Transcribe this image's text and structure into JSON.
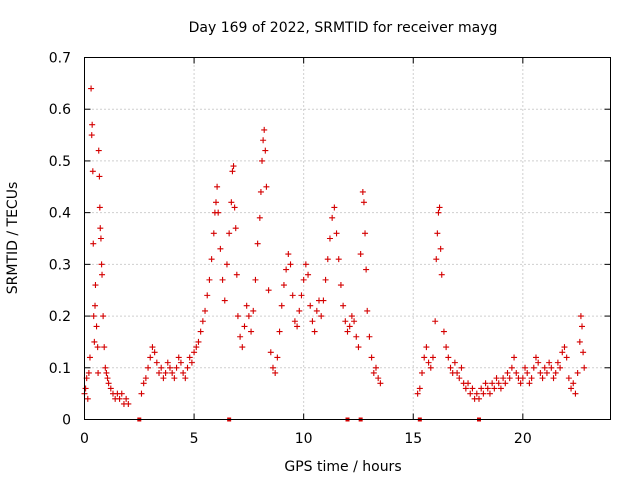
{
  "chart_data": {
    "type": "scatter",
    "title": "Day 169 of 2022, SRMTID for receiver mayg",
    "xlabel": "GPS time / hours",
    "ylabel": "SRMTID / TECUs",
    "xlim": [
      0,
      24
    ],
    "ylim": [
      0,
      0.7
    ],
    "xticks": [
      0,
      5,
      10,
      15,
      20
    ],
    "yticks": [
      0,
      0.1,
      0.2,
      0.3,
      0.4,
      0.5,
      0.6,
      0.7
    ],
    "xtick_labels": [
      "0",
      "5",
      "10",
      "15",
      "20"
    ],
    "ytick_labels": [
      "0",
      "0.1",
      "0.2",
      "0.3",
      "0.4",
      "0.5",
      "0.6",
      "0.7"
    ],
    "grid": true,
    "marker": "+",
    "color": "#d40000",
    "gap_markers_x": [
      2.5,
      6.6,
      12.0,
      12.6,
      15.3,
      18.0
    ],
    "series": [
      {
        "name": "SRMTID",
        "points": [
          [
            0.0,
            0.05
          ],
          [
            0.05,
            0.06
          ],
          [
            0.1,
            0.08
          ],
          [
            0.15,
            0.04
          ],
          [
            0.2,
            0.09
          ],
          [
            0.25,
            0.12
          ],
          [
            0.3,
            0.64
          ],
          [
            0.33,
            0.55
          ],
          [
            0.35,
            0.57
          ],
          [
            0.38,
            0.48
          ],
          [
            0.4,
            0.34
          ],
          [
            0.42,
            0.2
          ],
          [
            0.45,
            0.15
          ],
          [
            0.48,
            0.22
          ],
          [
            0.5,
            0.26
          ],
          [
            0.55,
            0.18
          ],
          [
            0.6,
            0.14
          ],
          [
            0.62,
            0.09
          ],
          [
            0.65,
            0.52
          ],
          [
            0.68,
            0.47
          ],
          [
            0.7,
            0.41
          ],
          [
            0.72,
            0.37
          ],
          [
            0.75,
            0.35
          ],
          [
            0.78,
            0.3
          ],
          [
            0.8,
            0.28
          ],
          [
            0.85,
            0.2
          ],
          [
            0.9,
            0.14
          ],
          [
            0.95,
            0.1
          ],
          [
            1.0,
            0.09
          ],
          [
            1.05,
            0.08
          ],
          [
            1.1,
            0.07
          ],
          [
            1.2,
            0.06
          ],
          [
            1.3,
            0.05
          ],
          [
            1.4,
            0.04
          ],
          [
            1.5,
            0.05
          ],
          [
            1.6,
            0.04
          ],
          [
            1.7,
            0.05
          ],
          [
            1.8,
            0.03
          ],
          [
            1.9,
            0.04
          ],
          [
            2.0,
            0.03
          ],
          [
            2.6,
            0.05
          ],
          [
            2.7,
            0.07
          ],
          [
            2.8,
            0.08
          ],
          [
            2.9,
            0.1
          ],
          [
            3.0,
            0.12
          ],
          [
            3.1,
            0.14
          ],
          [
            3.2,
            0.13
          ],
          [
            3.3,
            0.11
          ],
          [
            3.4,
            0.09
          ],
          [
            3.5,
            0.1
          ],
          [
            3.6,
            0.08
          ],
          [
            3.7,
            0.09
          ],
          [
            3.8,
            0.11
          ],
          [
            3.9,
            0.1
          ],
          [
            4.0,
            0.09
          ],
          [
            4.1,
            0.08
          ],
          [
            4.2,
            0.1
          ],
          [
            4.3,
            0.12
          ],
          [
            4.4,
            0.11
          ],
          [
            4.5,
            0.09
          ],
          [
            4.6,
            0.08
          ],
          [
            4.7,
            0.1
          ],
          [
            4.8,
            0.12
          ],
          [
            4.9,
            0.11
          ],
          [
            5.0,
            0.13
          ],
          [
            5.1,
            0.14
          ],
          [
            5.2,
            0.15
          ],
          [
            5.3,
            0.17
          ],
          [
            5.4,
            0.19
          ],
          [
            5.5,
            0.21
          ],
          [
            5.6,
            0.24
          ],
          [
            5.7,
            0.27
          ],
          [
            5.8,
            0.31
          ],
          [
            5.9,
            0.36
          ],
          [
            5.95,
            0.4
          ],
          [
            6.0,
            0.42
          ],
          [
            6.05,
            0.45
          ],
          [
            6.1,
            0.4
          ],
          [
            6.2,
            0.33
          ],
          [
            6.3,
            0.27
          ],
          [
            6.4,
            0.23
          ],
          [
            6.5,
            0.3
          ],
          [
            6.6,
            0.36
          ],
          [
            6.7,
            0.42
          ],
          [
            6.75,
            0.48
          ],
          [
            6.8,
            0.49
          ],
          [
            6.85,
            0.41
          ],
          [
            6.9,
            0.37
          ],
          [
            6.95,
            0.28
          ],
          [
            7.0,
            0.2
          ],
          [
            7.1,
            0.16
          ],
          [
            7.2,
            0.14
          ],
          [
            7.3,
            0.18
          ],
          [
            7.4,
            0.22
          ],
          [
            7.5,
            0.2
          ],
          [
            7.6,
            0.17
          ],
          [
            7.7,
            0.21
          ],
          [
            7.8,
            0.27
          ],
          [
            7.9,
            0.34
          ],
          [
            8.0,
            0.39
          ],
          [
            8.05,
            0.44
          ],
          [
            8.1,
            0.5
          ],
          [
            8.15,
            0.54
          ],
          [
            8.2,
            0.56
          ],
          [
            8.25,
            0.52
          ],
          [
            8.3,
            0.45
          ],
          [
            8.4,
            0.25
          ],
          [
            8.5,
            0.13
          ],
          [
            8.6,
            0.1
          ],
          [
            8.7,
            0.09
          ],
          [
            8.8,
            0.12
          ],
          [
            8.9,
            0.17
          ],
          [
            9.0,
            0.22
          ],
          [
            9.1,
            0.26
          ],
          [
            9.2,
            0.29
          ],
          [
            9.3,
            0.32
          ],
          [
            9.4,
            0.3
          ],
          [
            9.5,
            0.24
          ],
          [
            9.6,
            0.19
          ],
          [
            9.7,
            0.18
          ],
          [
            9.8,
            0.21
          ],
          [
            9.9,
            0.24
          ],
          [
            10.0,
            0.27
          ],
          [
            10.1,
            0.3
          ],
          [
            10.2,
            0.28
          ],
          [
            10.3,
            0.22
          ],
          [
            10.4,
            0.19
          ],
          [
            10.5,
            0.17
          ],
          [
            10.6,
            0.21
          ],
          [
            10.7,
            0.23
          ],
          [
            10.8,
            0.2
          ],
          [
            10.9,
            0.23
          ],
          [
            11.0,
            0.27
          ],
          [
            11.1,
            0.31
          ],
          [
            11.2,
            0.35
          ],
          [
            11.3,
            0.39
          ],
          [
            11.4,
            0.41
          ],
          [
            11.5,
            0.36
          ],
          [
            11.6,
            0.31
          ],
          [
            11.7,
            0.26
          ],
          [
            11.8,
            0.22
          ],
          [
            11.9,
            0.19
          ],
          [
            12.0,
            0.17
          ],
          [
            12.1,
            0.18
          ],
          [
            12.2,
            0.2
          ],
          [
            12.3,
            0.19
          ],
          [
            12.4,
            0.16
          ],
          [
            12.5,
            0.14
          ],
          [
            12.6,
            0.32
          ],
          [
            12.7,
            0.44
          ],
          [
            12.75,
            0.42
          ],
          [
            12.8,
            0.36
          ],
          [
            12.85,
            0.29
          ],
          [
            12.9,
            0.21
          ],
          [
            13.0,
            0.16
          ],
          [
            13.1,
            0.12
          ],
          [
            13.2,
            0.09
          ],
          [
            13.3,
            0.1
          ],
          [
            13.4,
            0.08
          ],
          [
            13.5,
            0.07
          ],
          [
            15.2,
            0.05
          ],
          [
            15.3,
            0.06
          ],
          [
            15.4,
            0.09
          ],
          [
            15.5,
            0.12
          ],
          [
            15.6,
            0.14
          ],
          [
            15.7,
            0.11
          ],
          [
            15.8,
            0.1
          ],
          [
            15.9,
            0.12
          ],
          [
            16.0,
            0.19
          ],
          [
            16.05,
            0.31
          ],
          [
            16.1,
            0.36
          ],
          [
            16.15,
            0.4
          ],
          [
            16.2,
            0.41
          ],
          [
            16.25,
            0.33
          ],
          [
            16.3,
            0.28
          ],
          [
            16.4,
            0.17
          ],
          [
            16.5,
            0.14
          ],
          [
            16.6,
            0.12
          ],
          [
            16.7,
            0.1
          ],
          [
            16.8,
            0.09
          ],
          [
            16.9,
            0.11
          ],
          [
            17.0,
            0.09
          ],
          [
            17.1,
            0.08
          ],
          [
            17.2,
            0.1
          ],
          [
            17.3,
            0.07
          ],
          [
            17.4,
            0.06
          ],
          [
            17.5,
            0.07
          ],
          [
            17.6,
            0.05
          ],
          [
            17.7,
            0.06
          ],
          [
            17.8,
            0.04
          ],
          [
            17.9,
            0.05
          ],
          [
            18.0,
            0.04
          ],
          [
            18.1,
            0.06
          ],
          [
            18.2,
            0.05
          ],
          [
            18.3,
            0.07
          ],
          [
            18.4,
            0.06
          ],
          [
            18.5,
            0.05
          ],
          [
            18.6,
            0.07
          ],
          [
            18.7,
            0.06
          ],
          [
            18.8,
            0.08
          ],
          [
            18.9,
            0.07
          ],
          [
            19.0,
            0.06
          ],
          [
            19.1,
            0.08
          ],
          [
            19.2,
            0.07
          ],
          [
            19.3,
            0.09
          ],
          [
            19.4,
            0.08
          ],
          [
            19.5,
            0.1
          ],
          [
            19.6,
            0.12
          ],
          [
            19.7,
            0.09
          ],
          [
            19.8,
            0.08
          ],
          [
            19.9,
            0.07
          ],
          [
            20.0,
            0.08
          ],
          [
            20.1,
            0.1
          ],
          [
            20.2,
            0.09
          ],
          [
            20.3,
            0.07
          ],
          [
            20.4,
            0.08
          ],
          [
            20.5,
            0.1
          ],
          [
            20.6,
            0.12
          ],
          [
            20.7,
            0.11
          ],
          [
            20.8,
            0.09
          ],
          [
            20.9,
            0.08
          ],
          [
            21.0,
            0.1
          ],
          [
            21.1,
            0.09
          ],
          [
            21.2,
            0.11
          ],
          [
            21.3,
            0.1
          ],
          [
            21.4,
            0.08
          ],
          [
            21.5,
            0.09
          ],
          [
            21.6,
            0.11
          ],
          [
            21.7,
            0.1
          ],
          [
            21.8,
            0.13
          ],
          [
            21.9,
            0.14
          ],
          [
            22.0,
            0.12
          ],
          [
            22.1,
            0.08
          ],
          [
            22.2,
            0.06
          ],
          [
            22.3,
            0.07
          ],
          [
            22.4,
            0.05
          ],
          [
            22.5,
            0.09
          ],
          [
            22.6,
            0.15
          ],
          [
            22.65,
            0.2
          ],
          [
            22.7,
            0.18
          ],
          [
            22.75,
            0.13
          ],
          [
            22.8,
            0.1
          ]
        ]
      }
    ]
  }
}
